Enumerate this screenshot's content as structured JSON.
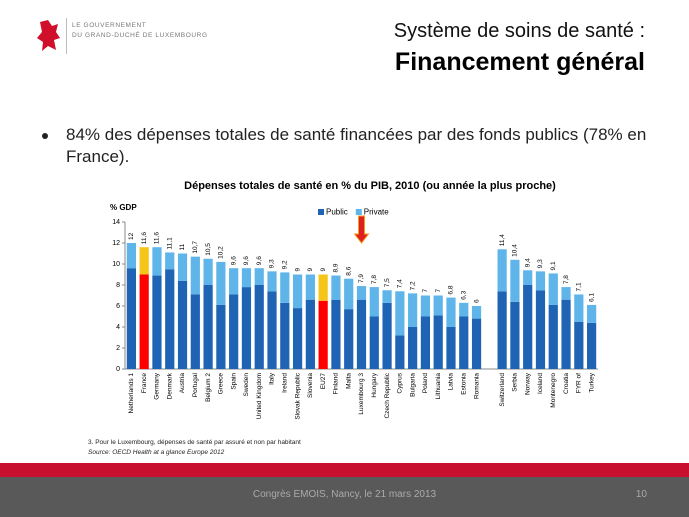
{
  "header": {
    "logo_line1": "LE GOUVERNEMENT",
    "logo_line2": "DU GRAND-DUCHÉ DE LUXEMBOURG",
    "title": "Système de soins de santé :",
    "subtitle": "Financement général"
  },
  "bullet": "84% des dépenses totales de santé financées par des fonds publics (78% en France).",
  "chart_data": {
    "type": "stacked_bar",
    "title": "Dépenses totales de santé en % du PIB, 2010 (ou année la plus proche)",
    "ylabel": "% GDP",
    "categories": [
      "Netherlands 1",
      "France",
      "Germany",
      "Denmark",
      "Austria",
      "Portugal",
      "Belgium 2",
      "Greece",
      "Spain",
      "Sweden",
      "United Kingdom",
      "Italy",
      "Ireland",
      "Slovak Republic",
      "Slovenia",
      "EU27",
      "Finland",
      "Malta",
      "Luxembourg 3",
      "Hungary",
      "Czech Republic",
      "Cyprus",
      "Bulgaria",
      "Poland",
      "Lithuania",
      "Latvia",
      "Estonia",
      "Romania",
      null,
      "Switzerland",
      "Serbia",
      "Norway",
      "Iceland",
      "Montenegro",
      "Croatia",
      "FYR of",
      "Turkey"
    ],
    "series": [
      {
        "name": "Public",
        "color": "#1f64b4",
        "highlight_color": "#ff0000",
        "values": [
          9.6,
          9.0,
          8.9,
          9.5,
          8.4,
          7.1,
          8.0,
          6.1,
          7.1,
          7.8,
          8.0,
          7.4,
          6.3,
          5.8,
          6.6,
          6.5,
          6.6,
          5.7,
          6.6,
          5.0,
          6.3,
          3.2,
          4.0,
          5.0,
          5.1,
          4.0,
          5.0,
          4.8,
          null,
          7.4,
          6.4,
          8.0,
          7.5,
          6.1,
          6.6,
          4.5,
          4.4
        ]
      },
      {
        "name": "Private",
        "color": "#5fb5ea",
        "highlight_color": "#f5c518",
        "values": [
          2.4,
          2.6,
          2.7,
          1.6,
          2.6,
          3.6,
          2.5,
          4.1,
          2.5,
          1.8,
          1.6,
          1.9,
          2.9,
          3.2,
          2.4,
          2.5,
          2.3,
          2.9,
          1.3,
          2.8,
          1.2,
          4.2,
          3.2,
          2.0,
          1.9,
          2.8,
          1.3,
          1.2,
          null,
          4.0,
          4.0,
          1.4,
          1.8,
          3.0,
          1.2,
          2.6,
          1.7
        ]
      }
    ],
    "highlight_categories": [
      "France",
      "EU27"
    ],
    "totals": [
      12,
      11.6,
      11.6,
      11.1,
      11,
      10.7,
      10.5,
      10.2,
      9.6,
      9.6,
      9.6,
      9.3,
      9.2,
      9,
      9,
      9,
      8.9,
      8.6,
      7.9,
      7.8,
      7.5,
      7.4,
      7.2,
      7,
      7,
      6.8,
      6.3,
      6,
      null,
      11.4,
      10.4,
      9.4,
      9.3,
      9.1,
      7.8,
      7.1,
      6.1
    ],
    "total_labels": [
      "12",
      "11,6",
      "11,6",
      "11,1",
      "11",
      "10,7",
      "10,5",
      "10,2",
      "9,6",
      "9,6",
      "9,6",
      "9,3",
      "9,2",
      "9",
      "9",
      "9",
      "8,9",
      "8,6",
      "7,9",
      "7,8",
      "7,5",
      "7,4",
      "7,2",
      "7",
      "7",
      "6,8",
      "6,3",
      "6",
      null,
      "11,4",
      "10,4",
      "9,4",
      "9,3",
      "9,1",
      "7,8",
      "7,1",
      "6,1"
    ],
    "ylim": [
      0,
      14
    ],
    "yticks": [
      0,
      2,
      4,
      6,
      8,
      10,
      12,
      14
    ],
    "legend": "top"
  },
  "footnote": "3. Pour le Luxembourg, dépenses de santé par assuré et non par habitant",
  "source": "Source: OECD Health at a glance Europe 2012",
  "footer": {
    "text": "Congrès EMOIS, Nancy, le 21 mars 2013",
    "page": "10"
  }
}
